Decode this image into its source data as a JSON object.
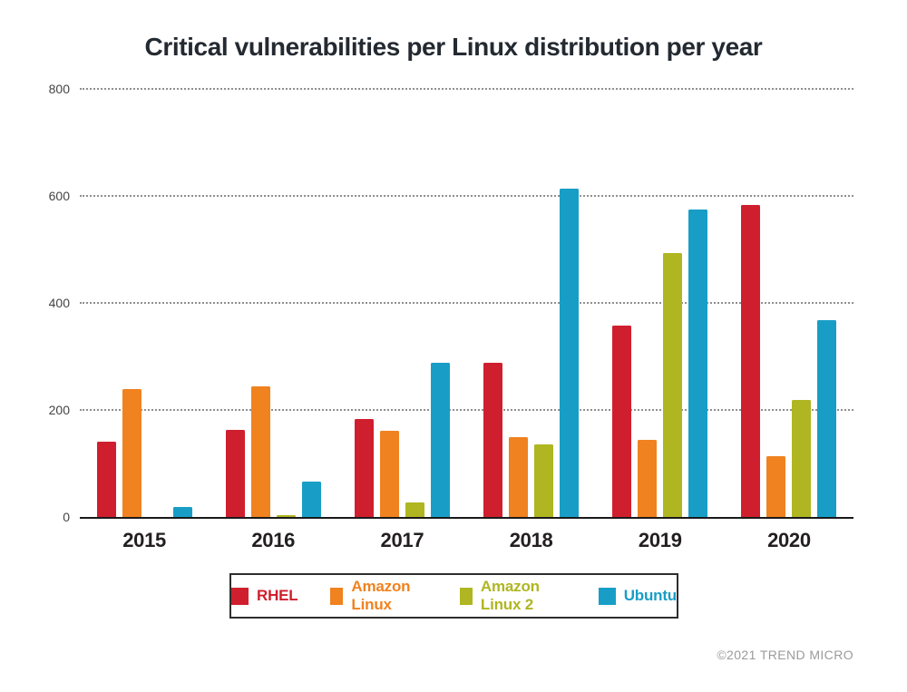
{
  "chart_data": {
    "type": "bar",
    "title": "Critical vulnerabilities per Linux distribution per year",
    "categories": [
      "2015",
      "2016",
      "2017",
      "2018",
      "2019",
      "2020"
    ],
    "series": [
      {
        "name": "RHEL",
        "color": "#CF1F2E",
        "values": [
          143,
          165,
          185,
          290,
          360,
          585
        ]
      },
      {
        "name": "Amazon Linux",
        "color": "#F0821F",
        "values": [
          240,
          245,
          162,
          150,
          145,
          115
        ]
      },
      {
        "name": "Amazon Linux 2",
        "color": "#AFB621",
        "values": [
          2,
          5,
          28,
          138,
          495,
          220
        ]
      },
      {
        "name": "Ubuntu",
        "color": "#189EC6",
        "values": [
          20,
          67,
          290,
          615,
          577,
          370
        ]
      }
    ],
    "xlabel": "",
    "ylabel": "",
    "ylim": [
      0,
      800
    ],
    "yticks": [
      0,
      200,
      400,
      600,
      800
    ],
    "grid": "horizontal-dotted",
    "legend_position": "bottom-center"
  },
  "footer": {
    "copyright": "©2021 TREND MICRO"
  },
  "colors": {
    "background": "#FFFFFF",
    "title_text": "#242A31",
    "axis_line": "#1A1A1A",
    "gridline": "#8F8F8F",
    "tick_label": "#444444",
    "year_label": "#231F20",
    "legend_border": "#2E2E2E",
    "copyright_text": "#9B9B9B"
  }
}
